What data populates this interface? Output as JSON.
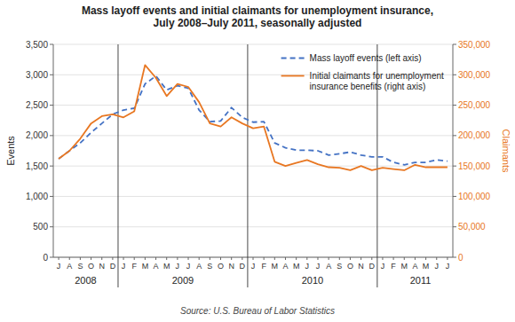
{
  "chart_data": {
    "type": "line",
    "title": "Mass layoff events and initial claimants for unemployment insurance,\nJuly 2008–July 2011, seasonally adjusted",
    "ylabel": "Events",
    "y2label": "Claimants",
    "categories": [
      "J",
      "A",
      "S",
      "O",
      "N",
      "D",
      "J",
      "F",
      "M",
      "A",
      "M",
      "J",
      "J",
      "A",
      "S",
      "O",
      "N",
      "D",
      "J",
      "F",
      "M",
      "A",
      "M",
      "J",
      "J",
      "A",
      "S",
      "O",
      "N",
      "D",
      "J",
      "F",
      "M",
      "A",
      "M",
      "J",
      "J"
    ],
    "series": [
      {
        "name": "Mass layoff events (left axis)",
        "color": "#4472C4",
        "line_style": "dashed",
        "values": [
          1620,
          1750,
          1880,
          2050,
          2200,
          2350,
          2420,
          2450,
          2850,
          2980,
          2750,
          2820,
          2780,
          2420,
          2230,
          2240,
          2460,
          2300,
          2220,
          2230,
          1880,
          1800,
          1760,
          1760,
          1750,
          1680,
          1700,
          1730,
          1680,
          1650,
          1650,
          1560,
          1520,
          1560,
          1560,
          1600,
          1580
        ]
      },
      {
        "name": "Initial claimants for unemployment\ninsurance benefits (right axis)",
        "color": "#E87722",
        "line_style": "solid",
        "axis": "y2",
        "values": [
          162000,
          175000,
          195000,
          220000,
          232000,
          235000,
          230000,
          240000,
          316000,
          295000,
          265000,
          285000,
          280000,
          255000,
          220000,
          215000,
          230000,
          220000,
          212000,
          215000,
          157000,
          150000,
          155000,
          160000,
          153000,
          148000,
          147000,
          143000,
          150000,
          143000,
          147000,
          145000,
          143000,
          152000,
          148000,
          148000,
          148000
        ]
      }
    ],
    "ylim": [
      0,
      3500
    ],
    "yticks": [
      0,
      500,
      {
        "value": 1000,
        "label": "1,000"
      },
      {
        "value": 1500,
        "label": "1,500"
      },
      {
        "value": 2000,
        "label": "2,000"
      },
      {
        "value": 2500,
        "label": "2,500"
      },
      {
        "value": 3000,
        "label": "3,000"
      },
      {
        "value": 3500,
        "label": "3,500"
      }
    ],
    "y2lim": [
      0,
      350000
    ],
    "y2ticks": [
      0,
      {
        "value": 50000,
        "label": "50,000"
      },
      {
        "value": 100000,
        "label": "100,000"
      },
      {
        "value": 150000,
        "label": "150,000"
      },
      {
        "value": 200000,
        "label": "200,000"
      },
      {
        "value": 250000,
        "label": "250,000"
      },
      {
        "value": 300000,
        "label": "300,000"
      },
      {
        "value": 350000,
        "label": "350,000"
      }
    ],
    "annotations": [
      {
        "text": "2008",
        "x": 2.5
      },
      {
        "text": "2009",
        "x": 11.5
      },
      {
        "text": "2010",
        "x": 23.5
      },
      {
        "text": "2011",
        "x": 33.5
      },
      {
        "text": "Source: U.S. Bureau of Labor Statistics"
      }
    ],
    "grid": true,
    "legend": "upper right"
  }
}
